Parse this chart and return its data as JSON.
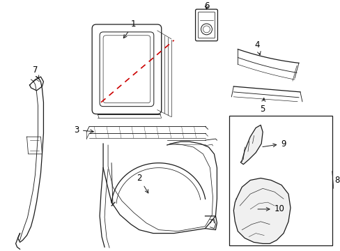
{
  "bg_color": "#ffffff",
  "line_color": "#1a1a1a",
  "red_dash_color": "#cc0000",
  "lw": 0.9
}
